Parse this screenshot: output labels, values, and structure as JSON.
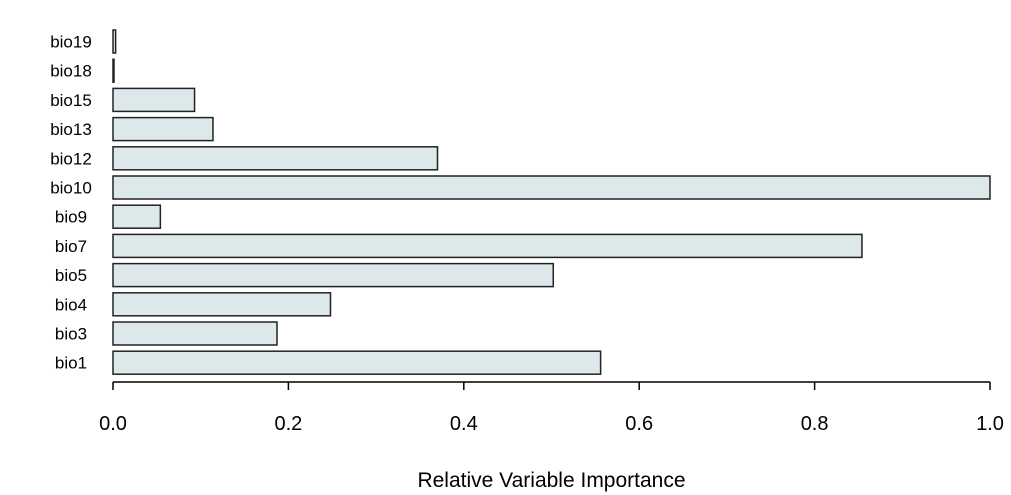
{
  "colors": {
    "bar_fill": "#dce8ea",
    "bar_stroke": "#222222",
    "axis": "#000000",
    "text": "#000000"
  },
  "chart_data": {
    "type": "bar",
    "orientation": "horizontal",
    "categories": [
      "bio1",
      "bio3",
      "bio4",
      "bio5",
      "bio7",
      "bio9",
      "bio10",
      "bio12",
      "bio13",
      "bio15",
      "bio18",
      "bio19"
    ],
    "values": [
      0.556,
      0.187,
      0.248,
      0.502,
      0.854,
      0.054,
      1.0,
      0.37,
      0.114,
      0.093,
      0.001,
      0.003
    ],
    "title": "",
    "xlabel": "Relative Variable Importance",
    "ylabel": "",
    "xlim": [
      0,
      1
    ],
    "xticks": [
      0,
      0.2,
      0.4,
      0.6,
      0.8,
      1
    ],
    "xtick_labels": [
      "0.0",
      "0.2",
      "0.4",
      "0.6",
      "0.8",
      "1.0"
    ],
    "grid": false,
    "legend": "none"
  }
}
